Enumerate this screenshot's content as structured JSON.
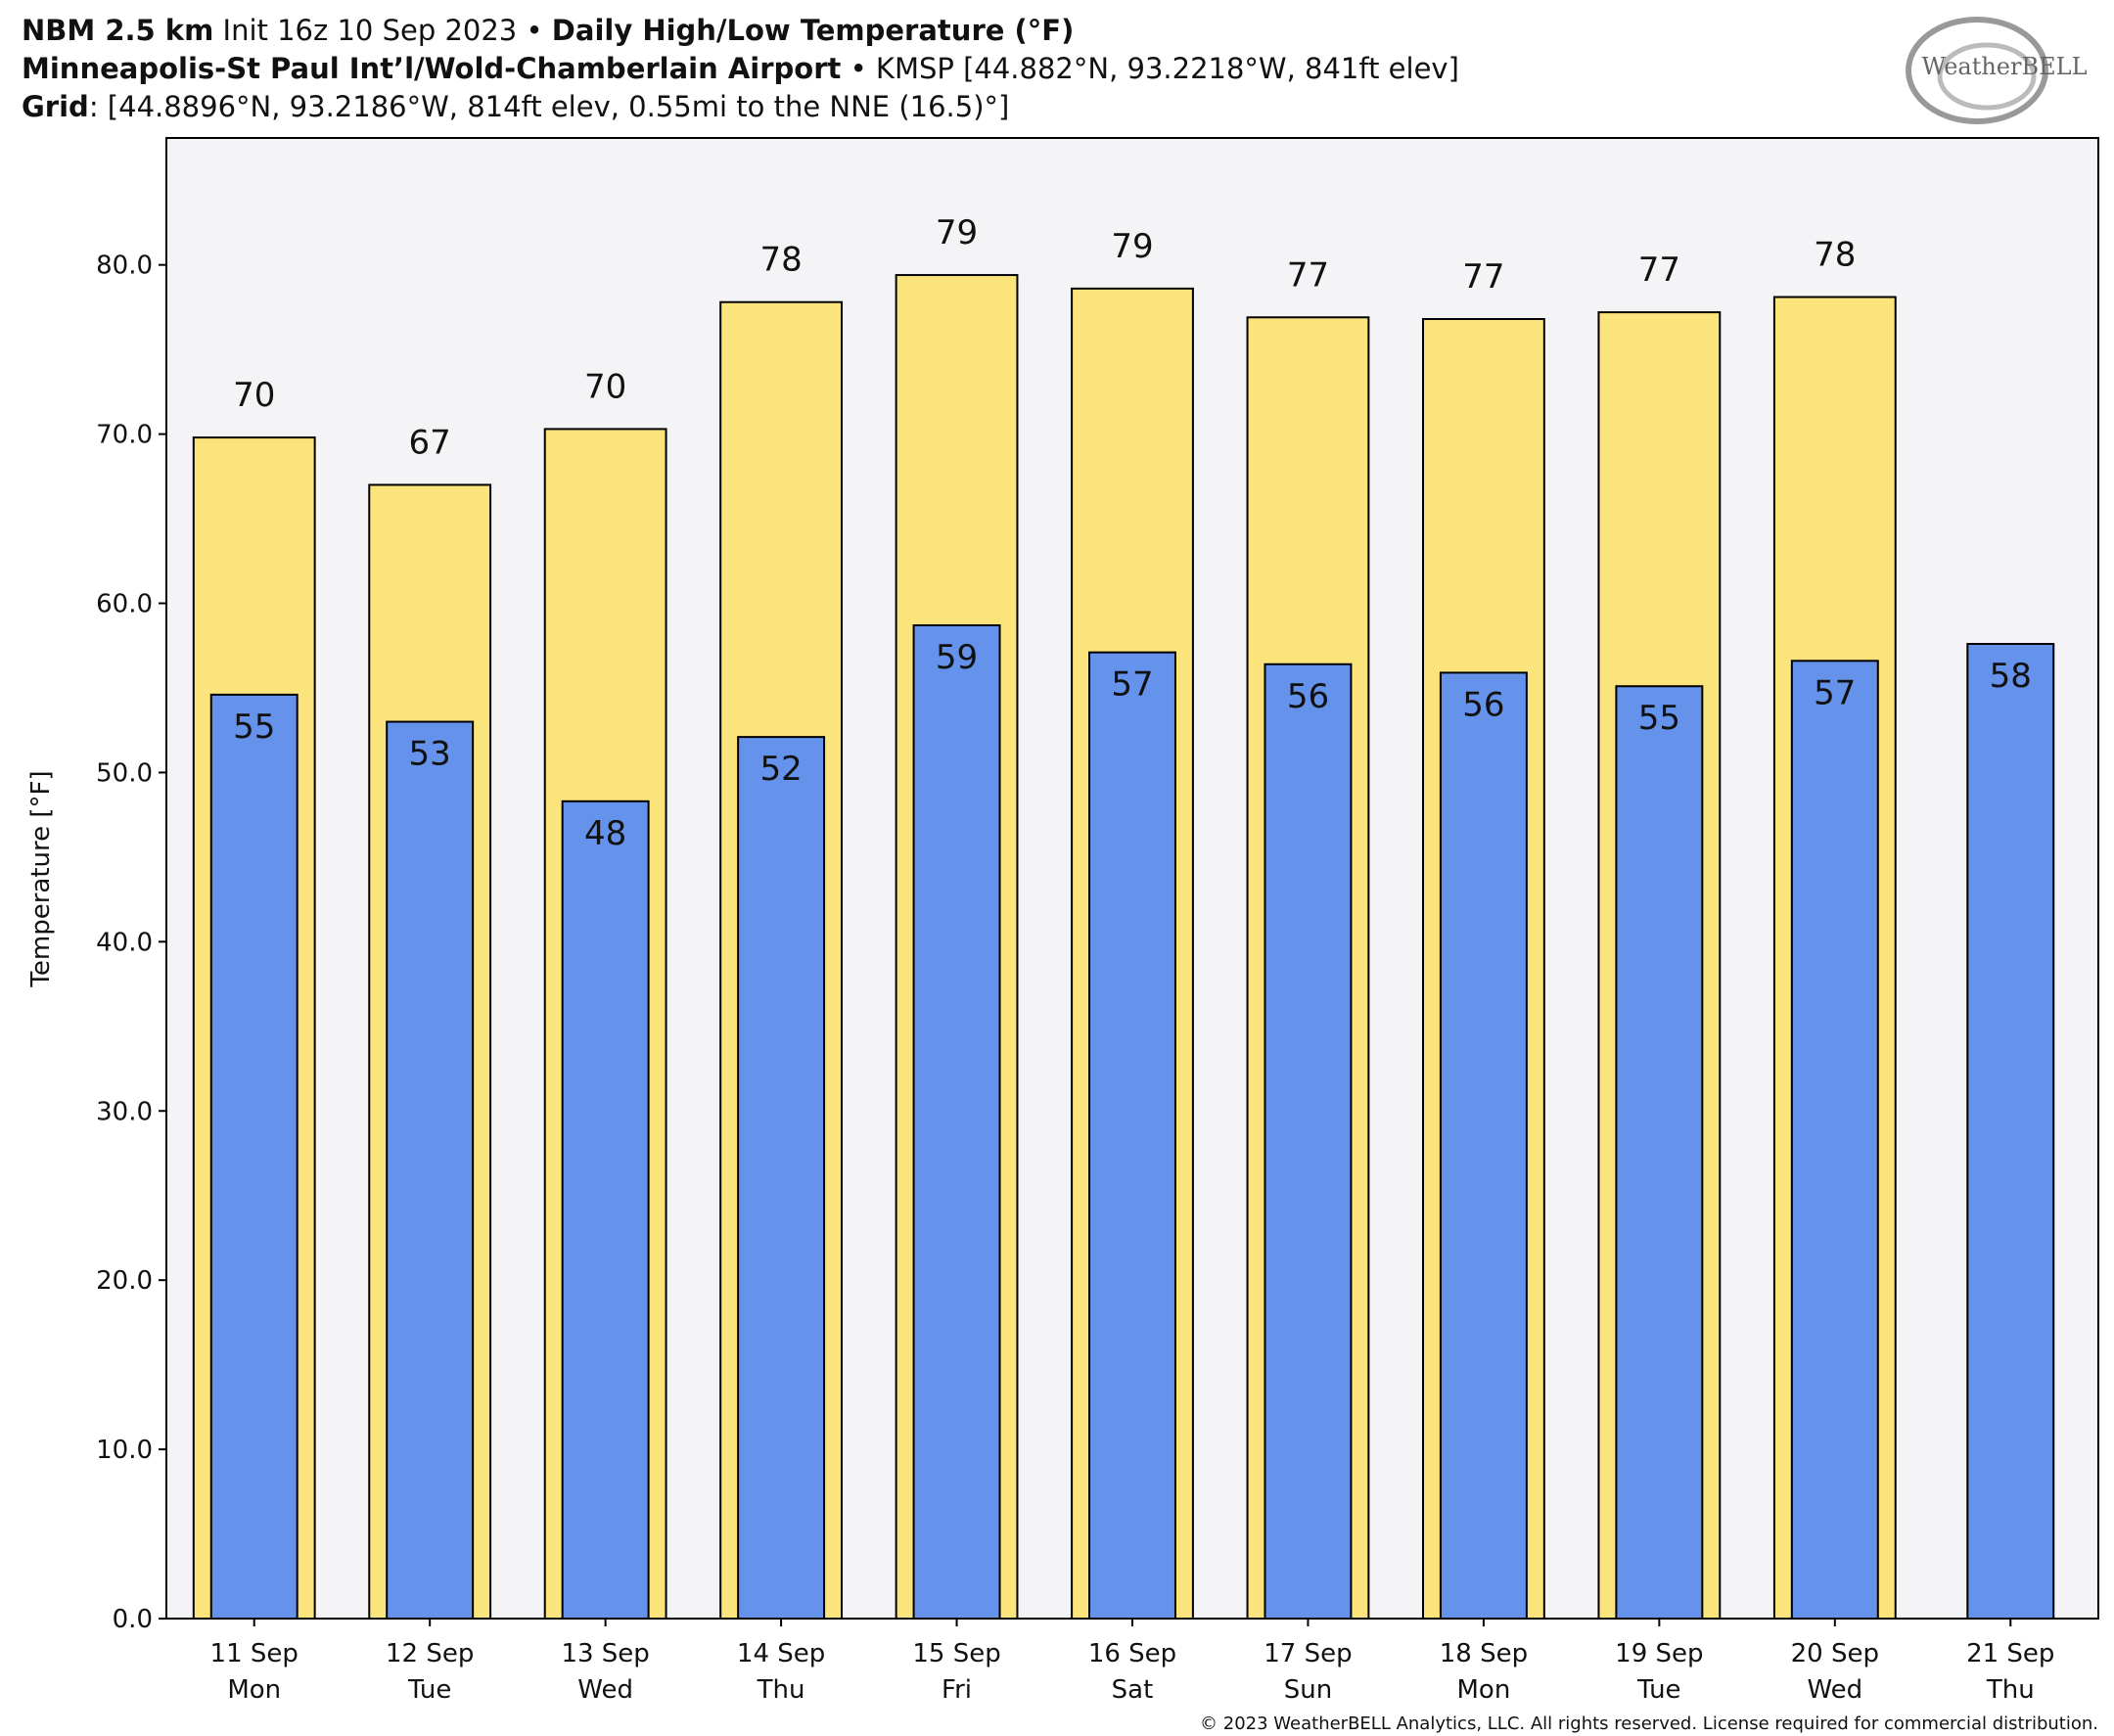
{
  "header": {
    "line1": [
      "NBM 2.5 km",
      " Init 16z 10 Sep 2023 • "
    ],
    "line2": [
      "Minneapolis-St Paul Int’l/Wold-Chamberlain Airport",
      " • KMSP [44.882°N, 93.2218°W, 841ft elev]"
    ],
    "line3": [
      "Grid",
      ": [44.8896°N, 93.2186°W, 814ft elev, 0.55mi to the NNE (16.5)°]"
    ]
  },
  "logo": "WeatherBELL",
  "footer": "© 2023 WeatherBELL Analytics, LLC. All rights reserved. License required for commercial distribution.",
  "chart_data": {
    "type": "bar",
    "title": "Daily High/Low Temperature (°F)",
    "ylabel": "Temperature [°F]",
    "categories": [
      [
        "11 Sep",
        "Mon"
      ],
      [
        "12 Sep",
        "Tue"
      ],
      [
        "13 Sep",
        "Wed"
      ],
      [
        "14 Sep",
        "Thu"
      ],
      [
        "15 Sep",
        "Fri"
      ],
      [
        "16 Sep",
        "Sat"
      ],
      [
        "17 Sep",
        "Sun"
      ],
      [
        "18 Sep",
        "Mon"
      ],
      [
        "19 Sep",
        "Tue"
      ],
      [
        "20 Sep",
        "Wed"
      ],
      [
        "21 Sep",
        "Thu"
      ]
    ],
    "series": [
      {
        "name": "High",
        "color": "#fbe47c",
        "values": [
          69.8,
          67.0,
          70.3,
          77.8,
          79.4,
          78.6,
          76.9,
          76.8,
          77.2,
          78.1,
          null
        ],
        "value_labels": [
          "70",
          "67",
          "70",
          "78",
          "79",
          "79",
          "77",
          "77",
          "77",
          "78",
          null
        ]
      },
      {
        "name": "Low",
        "color": "#6593eb",
        "values": [
          54.6,
          53.0,
          48.3,
          52.1,
          58.7,
          57.1,
          56.4,
          55.9,
          55.1,
          56.6,
          57.6
        ],
        "value_labels": [
          "55",
          "53",
          "48",
          "52",
          "59",
          "57",
          "56",
          "56",
          "55",
          "57",
          "58"
        ]
      }
    ],
    "ylim": [
      0,
      87.5
    ],
    "yticks": [
      {
        "value": 0,
        "label": "0.0"
      },
      {
        "value": 10,
        "label": "10.0"
      },
      {
        "value": 20,
        "label": "20.0"
      },
      {
        "value": 30,
        "label": "30.0"
      },
      {
        "value": 40,
        "label": "40.0"
      },
      {
        "value": 50,
        "label": "50.0"
      },
      {
        "value": 60,
        "label": "60.0"
      },
      {
        "value": 70,
        "label": "70.0"
      },
      {
        "value": 80,
        "label": "80.0"
      }
    ],
    "grid": false
  }
}
